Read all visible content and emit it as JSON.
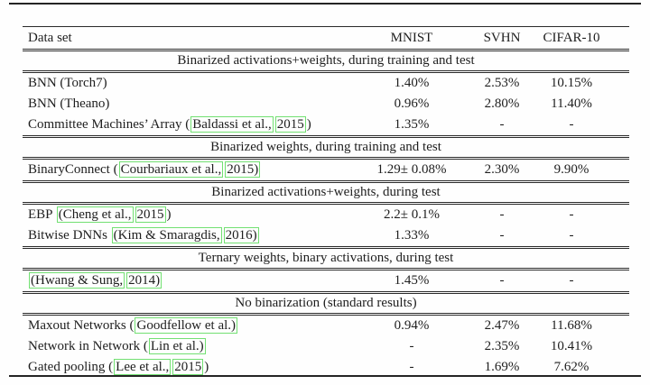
{
  "table": {
    "link_box_color": "#72e072",
    "rule_color": "#2a2a2a",
    "columns": [
      "Data set",
      "MNIST",
      "SVHN",
      "CIFAR-10"
    ],
    "sections": [
      {
        "title": "Binarized activations+weights, during training and test",
        "rows": [
          {
            "label_segments": [
              {
                "text": "BNN (Torch7)",
                "boxed": false
              }
            ],
            "values": [
              "1.40%",
              "2.53%",
              "10.15%"
            ]
          },
          {
            "label_segments": [
              {
                "text": "BNN (Theano)",
                "boxed": false
              }
            ],
            "values": [
              "0.96%",
              "2.80%",
              "11.40%"
            ]
          },
          {
            "label_segments": [
              {
                "text": "Committee Machines’ Array (",
                "boxed": false
              },
              {
                "text": "Baldassi et al.,",
                "boxed": true
              },
              {
                "text": "2015",
                "boxed": true
              },
              {
                "text": ")",
                "boxed": false
              }
            ],
            "values": [
              "1.35%",
              "-",
              "-"
            ]
          }
        ]
      },
      {
        "title": "Binarized weights, during training and test",
        "rows": [
          {
            "label_segments": [
              {
                "text": "BinaryConnect (",
                "boxed": false
              },
              {
                "text": "Courbariaux et al.,",
                "boxed": true
              },
              {
                "text": "2015)",
                "boxed": true
              }
            ],
            "values": [
              "1.29± 0.08%",
              "2.30%",
              "9.90%"
            ]
          }
        ]
      },
      {
        "title": "Binarized activations+weights, during test",
        "rows": [
          {
            "label_segments": [
              {
                "text": "EBP ",
                "boxed": false
              },
              {
                "text": "(Cheng et al.,",
                "boxed": true
              },
              {
                "text": "2015",
                "boxed": true
              },
              {
                "text": ")",
                "boxed": false
              }
            ],
            "values": [
              "2.2± 0.1%",
              "-",
              "-"
            ]
          },
          {
            "label_segments": [
              {
                "text": "Bitwise DNNs ",
                "boxed": false
              },
              {
                "text": "(Kim & Smaragdis,",
                "boxed": true
              },
              {
                "text": "2016)",
                "boxed": true
              }
            ],
            "values": [
              "1.33%",
              "-",
              "-"
            ]
          }
        ]
      },
      {
        "title": "Ternary weights, binary activations, during test",
        "rows": [
          {
            "label_segments": [
              {
                "text": "(Hwang & Sung,",
                "boxed": true
              },
              {
                "text": "2014)",
                "boxed": true
              }
            ],
            "values": [
              "1.45%",
              "-",
              "-"
            ]
          }
        ]
      },
      {
        "title": "No binarization (standard results)",
        "rows": [
          {
            "label_segments": [
              {
                "text": "Maxout Networks (",
                "boxed": false
              },
              {
                "text": "Goodfellow et al.)",
                "boxed": true
              }
            ],
            "values": [
              "0.94%",
              "2.47%",
              "11.68%"
            ]
          },
          {
            "label_segments": [
              {
                "text": "Network in Network (",
                "boxed": false
              },
              {
                "text": "Lin et al.)",
                "boxed": true
              }
            ],
            "values": [
              "-",
              "2.35%",
              "10.41%"
            ]
          },
          {
            "label_segments": [
              {
                "text": "Gated pooling (",
                "boxed": false
              },
              {
                "text": "Lee et al.,",
                "boxed": true
              },
              {
                "text": "2015",
                "boxed": true
              },
              {
                "text": ")",
                "boxed": false
              }
            ],
            "values": [
              "-",
              "1.69%",
              "7.62%"
            ]
          }
        ]
      }
    ]
  }
}
